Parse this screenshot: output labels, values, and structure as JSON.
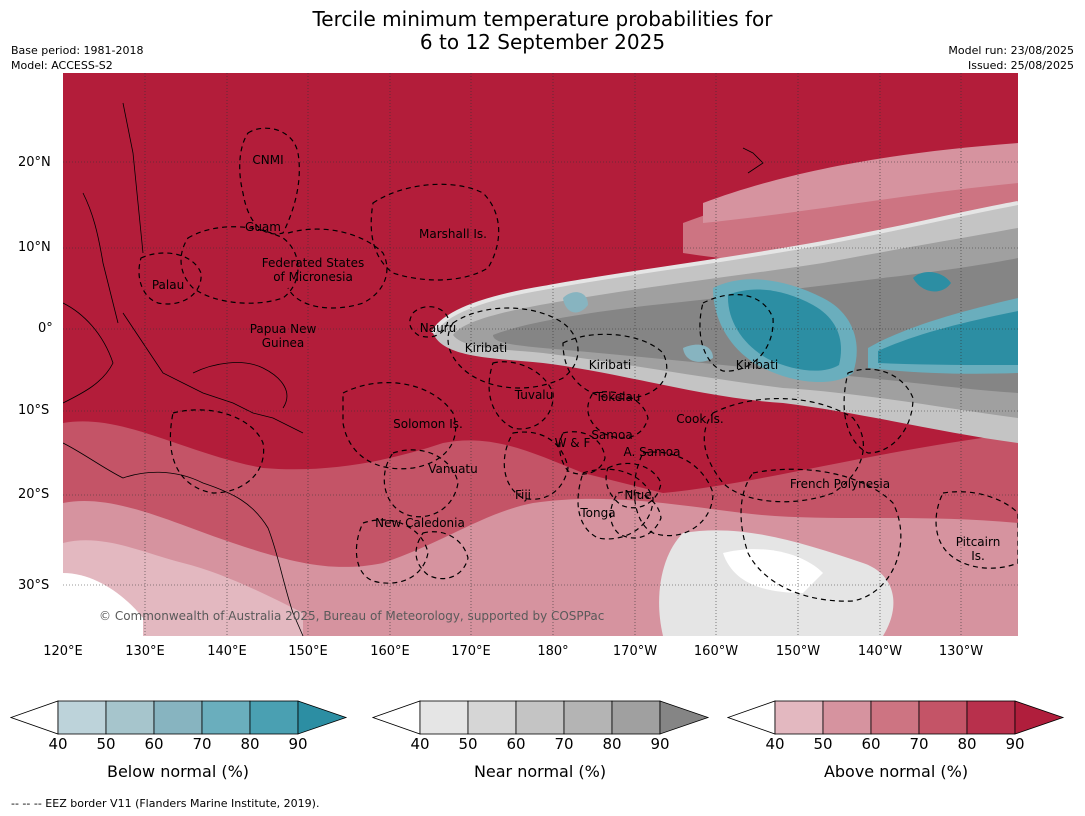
{
  "title_line1": "Tercile minimum temperature probabilities for",
  "title_line2": "6 to 12 September 2025",
  "meta": {
    "base_period": "Base period: 1981-2018",
    "model": "Model: ACCESS-S2",
    "model_run": "Model run: 23/08/2025",
    "issued": "Issued: 25/08/2025"
  },
  "axes": {
    "lat_labels": [
      "20°N",
      "10°N",
      "0°",
      "10°S",
      "20°S",
      "30°S"
    ],
    "lon_labels": [
      "120°E",
      "130°E",
      "140°E",
      "150°E",
      "160°E",
      "170°E",
      "180°",
      "170°W",
      "160°W",
      "150°W",
      "140°W",
      "130°W"
    ]
  },
  "places": [
    "CNMI",
    "Guam",
    "Marshall Is.",
    "Federated States\nof Micronesia",
    "Palau",
    "Papua New\nGuinea",
    "Nauru",
    "Kiribati",
    "Kiribati",
    "Kiribati",
    "Tuvalu",
    "Tokelau",
    "Solomon Is.",
    "Cook Is.",
    "Samoa",
    "W & F",
    "A. Samoa",
    "Vanuatu",
    "Fiji",
    "Niue",
    "Tonga",
    "French Polynesia",
    "New Caledonia",
    "Pitcairn\nIs."
  ],
  "copyright": "© Commonwealth of Australia 2025, Bureau of Meteorology, supported by COSPPac",
  "colorbars": [
    {
      "name": "below",
      "title": "Below normal (%)",
      "colors": [
        "#ffffff",
        "#bdd3da",
        "#a6c5cc",
        "#87b4c0",
        "#6aaebd",
        "#4aa0b2",
        "#2c8ea3"
      ]
    },
    {
      "name": "near",
      "title": "Near normal (%)",
      "colors": [
        "#ffffff",
        "#e5e5e5",
        "#d6d6d6",
        "#c4c4c4",
        "#b4b4b4",
        "#a0a0a0",
        "#858585"
      ]
    },
    {
      "name": "above",
      "title": "Above normal (%)",
      "colors": [
        "#ffffff",
        "#e3b8c0",
        "#d6939f",
        "#cd7482",
        "#c45467",
        "#b8304c",
        "#b01e3c"
      ]
    }
  ],
  "colorbar_ticks": [
    "40",
    "50",
    "60",
    "70",
    "80",
    "90"
  ],
  "footnote": "--  --  -- EEZ border V11 (Flanders Marine Institute, 2019)."
}
